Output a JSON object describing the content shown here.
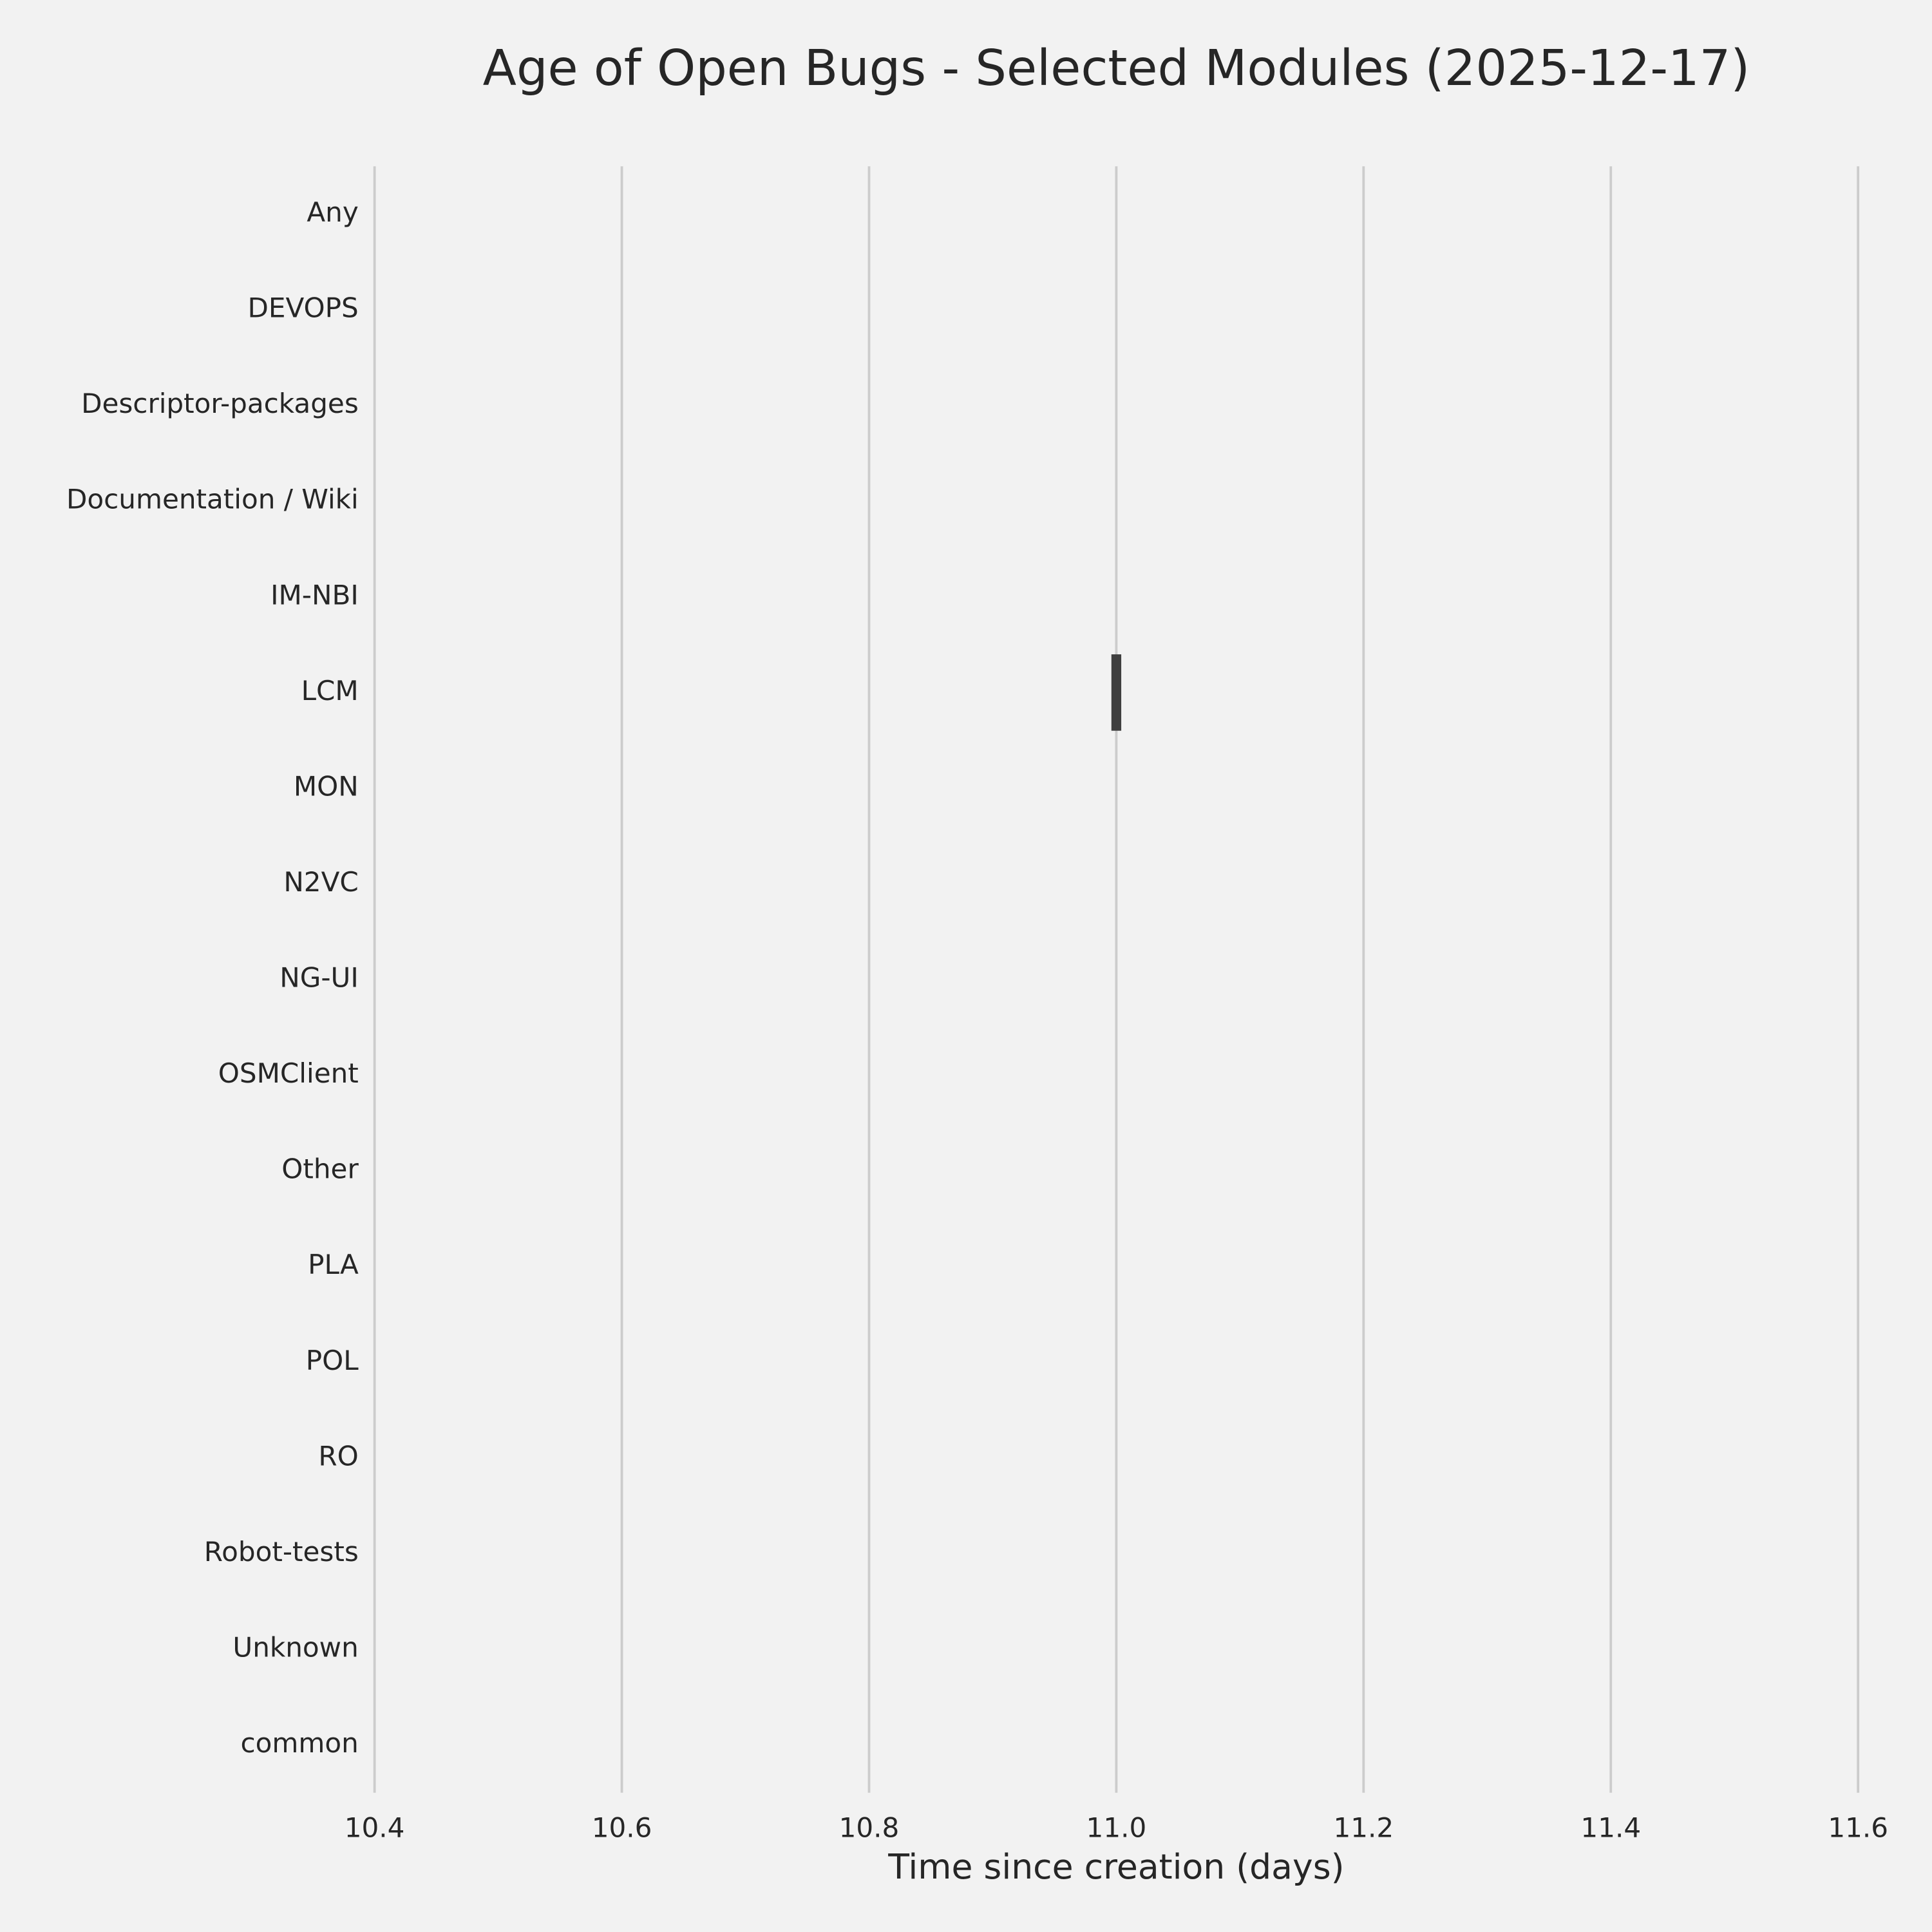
{
  "chart_data": {
    "type": "box",
    "title": "Age of Open Bugs - Selected Modules (2025-12-17)",
    "xlabel": "Time since creation (days)",
    "categories": [
      "Any",
      "DEVOPS",
      "Descriptor-packages",
      "Documentation / Wiki",
      "IM-NBI",
      "LCM",
      "MON",
      "N2VC",
      "NG-UI",
      "OSMClient",
      "Other",
      "PLA",
      "POL",
      "RO",
      "Robot-tests",
      "Unknown",
      "common"
    ],
    "values": [
      null,
      null,
      null,
      null,
      null,
      11,
      null,
      null,
      null,
      null,
      null,
      null,
      null,
      null,
      null,
      null,
      null
    ],
    "color": "#3f3f3f",
    "xlim": [
      10.4,
      11.6
    ],
    "xticks": [
      10.4,
      10.6,
      10.8,
      {
        "value": 11,
        "label": "11.0"
      },
      11.2,
      11.4,
      11.6
    ],
    "grid": true
  }
}
